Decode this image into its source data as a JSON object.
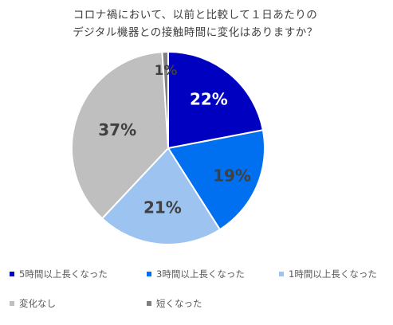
{
  "chart_data": {
    "type": "pie",
    "title_lines": [
      "コロナ禍において、以前と比較して１日あたりの",
      "デジタル機器との接触時間に変化はありますか？"
    ],
    "slices": [
      {
        "name": "5時間以上長くなった",
        "value": 22,
        "label": "22%",
        "color": "#0000c0",
        "label_color": "#ffffff"
      },
      {
        "name": "3時間以上長くなった",
        "value": 19,
        "label": "19%",
        "color": "#0070f0",
        "label_color": "#404040"
      },
      {
        "name": "1時間以上長くなった",
        "value": 21,
        "label": "21%",
        "color": "#9dc3f0",
        "label_color": "#404040"
      },
      {
        "name": "変化なし",
        "value": 37,
        "label": "37%",
        "color": "#bfbfbf",
        "label_color": "#404040"
      },
      {
        "name": "短くなった",
        "value": 1,
        "label": "1%",
        "color": "#7f7f7f",
        "label_color": "#404040"
      }
    ],
    "start_angle_deg": 0,
    "direction": "clockwise",
    "legend_position": "bottom"
  }
}
